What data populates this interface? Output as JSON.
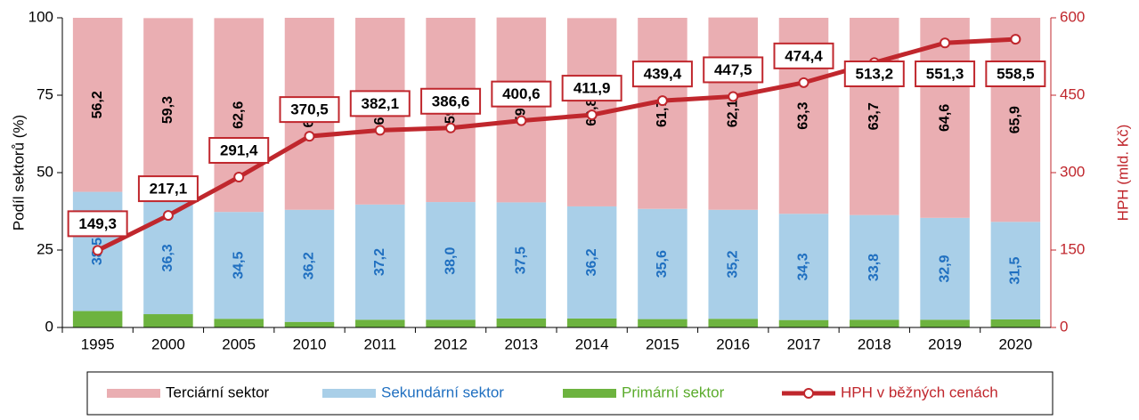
{
  "chart_data": {
    "type": "stacked_bar_line",
    "ylabel": "Podíl sektorů (%)",
    "y2label": "HPH  (mld. Kč)",
    "categories": [
      "1995",
      "2000",
      "2005",
      "2010",
      "2011",
      "2012",
      "2013",
      "2014",
      "2015",
      "2016",
      "2017",
      "2018",
      "2019",
      "2020"
    ],
    "ylim": [
      0,
      100
    ],
    "yticks": [
      0,
      25,
      50,
      75,
      100
    ],
    "y2lim": [
      0,
      600
    ],
    "y2ticks": [
      0,
      150,
      300,
      450,
      600
    ],
    "series": [
      {
        "name": "Primární sektor",
        "color": "#6db33f",
        "label_color": "#f5f500",
        "legend_color": "#5aab2b",
        "values": [
          5.3,
          4.3,
          2.8,
          1.8,
          2.5,
          2.5,
          2.9,
          2.9,
          2.7,
          2.8,
          2.4,
          2.5,
          2.5,
          2.6
        ],
        "value_labels": [
          "5,3",
          "4,3",
          "2,8",
          "1,8",
          "2,5",
          "2,5",
          "2,9",
          "2,9",
          "2,7",
          "2,8",
          "2,4",
          "2,5",
          "2,5",
          "2,6"
        ]
      },
      {
        "name": "Sekundární sektor",
        "color": "#a9cfe8",
        "label_color": "#1f6fc0",
        "legend_color": "#1f6fc0",
        "values": [
          38.5,
          36.3,
          34.5,
          36.2,
          37.2,
          38.0,
          37.5,
          36.2,
          35.6,
          35.2,
          34.3,
          33.8,
          32.9,
          31.5
        ],
        "value_labels": [
          "38,5",
          "36,3",
          "34,5",
          "36,2",
          "37,2",
          "38,0",
          "37,5",
          "36,2",
          "35,6",
          "35,2",
          "34,3",
          "33,8",
          "32,9",
          "31,5"
        ]
      },
      {
        "name": "Terciární sektor",
        "color": "#eaaeb2",
        "label_color": "#000000",
        "legend_color": "#000000",
        "values": [
          56.2,
          59.3,
          62.6,
          62.0,
          60.3,
          59.5,
          59.7,
          60.8,
          61.7,
          62.1,
          63.3,
          63.7,
          64.6,
          65.9
        ],
        "value_labels": [
          "56,2",
          "59,3",
          "62,6",
          "62,0",
          "60,3",
          "59,5",
          "59,7",
          "60,8",
          "61,7",
          "62,1",
          "63,3",
          "63,7",
          "64,6",
          "65,9"
        ]
      },
      {
        "name": "HPH v běžných cenách",
        "color": "#c0272d",
        "axis": "y2",
        "line": true,
        "legend_color": "#c0272d",
        "values": [
          149.3,
          217.1,
          291.4,
          370.5,
          382.1,
          386.6,
          400.6,
          411.9,
          439.4,
          447.5,
          474.4,
          513.2,
          551.3,
          558.5
        ],
        "value_labels": [
          "149,3",
          "217,1",
          "291,4",
          "370,5",
          "382,1",
          "386,6",
          "400,6",
          "411,9",
          "439,4",
          "447,5",
          "474,4",
          "513,2",
          "551,3",
          "558,5"
        ]
      }
    ]
  }
}
